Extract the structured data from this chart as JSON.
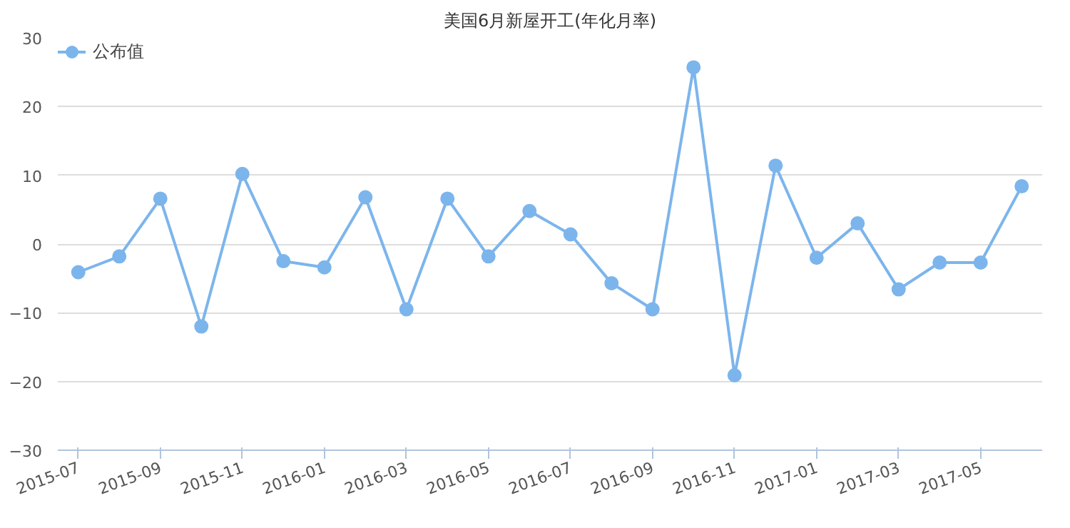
{
  "chart_data": {
    "type": "line",
    "title": "美国6月新屋开工(年化月率)",
    "categories": [
      "2015-07",
      null,
      "2015-09",
      null,
      "2015-11",
      null,
      "2016-01",
      null,
      "2016-03",
      null,
      "2016-05",
      null,
      "2016-07",
      null,
      "2016-09",
      null,
      "2016-11",
      null,
      "2017-01",
      null,
      "2017-03",
      null,
      "2017-05",
      null
    ],
    "series": [
      {
        "name": "公布值",
        "color": "#7cb5ec",
        "values": [
          -4.1,
          -1.8,
          6.6,
          -12.0,
          10.2,
          -2.5,
          -3.4,
          6.8,
          -9.5,
          6.6,
          -1.8,
          4.8,
          1.4,
          -5.7,
          -9.5,
          25.7,
          -19.1,
          11.4,
          -2.0,
          3.0,
          -6.6,
          -2.7,
          -2.7,
          8.4
        ]
      }
    ],
    "ylim": [
      -30,
      30
    ],
    "yticks": [
      -30,
      -20,
      -10,
      0,
      10,
      20,
      30
    ],
    "grid": "y",
    "legend": "top left",
    "marker": "circle",
    "line_style": "solid"
  }
}
